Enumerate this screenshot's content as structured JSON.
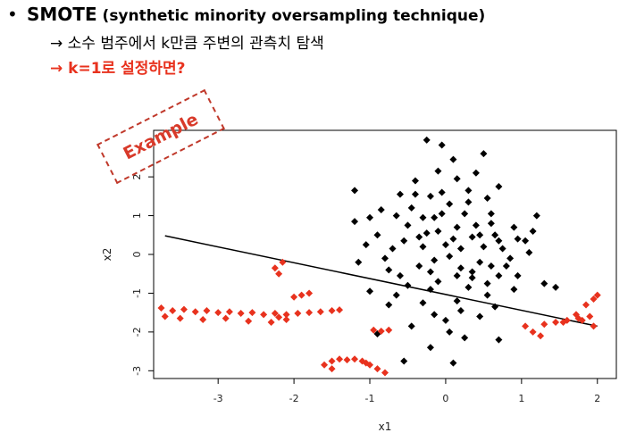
{
  "slide": {
    "bullet": "•",
    "title_main": "SMOTE",
    "title_rest": " (synthetic minority oversampling technique)",
    "sub1": "→ 소수 범주에서 k만큼 주변의 관측치 탐색",
    "sub2": "→ k=1로 설정하면?",
    "stamp": "Example"
  },
  "colors": {
    "accent": "#e8321e",
    "points": "#000000",
    "line": "#000000"
  },
  "chart_data": {
    "type": "scatter",
    "xlabel": "x1",
    "ylabel": "x2",
    "xlim": [
      -3.85,
      2.25
    ],
    "ylim": [
      -3.2,
      3.2
    ],
    "x_ticks": [
      -3,
      -2,
      -1,
      0,
      1,
      2
    ],
    "y_ticks": [
      -3,
      -2,
      -1,
      0,
      1,
      2
    ],
    "x_tick_labels": [
      "-3",
      "-2",
      "-1",
      "0",
      "1",
      "2"
    ],
    "y_tick_labels": [
      "-3",
      "-2",
      "-1",
      "0",
      "1",
      "2"
    ],
    "regression_line": {
      "x": [
        -3.7,
        2.0
      ],
      "y": [
        0.48,
        -1.85
      ]
    },
    "series": [
      {
        "values": [
          [
            -0.25,
            2.95
          ],
          [
            -0.05,
            2.82
          ],
          [
            0.1,
            2.45
          ],
          [
            0.5,
            2.6
          ],
          [
            -0.1,
            2.15
          ],
          [
            0.4,
            2.1
          ],
          [
            0.7,
            1.75
          ],
          [
            0.15,
            1.95
          ],
          [
            -0.4,
            1.9
          ],
          [
            -0.05,
            1.6
          ],
          [
            -0.6,
            1.55
          ],
          [
            -0.2,
            1.5
          ],
          [
            0.3,
            1.65
          ],
          [
            0.55,
            1.45
          ],
          [
            -1.2,
            1.65
          ],
          [
            -0.85,
            1.15
          ],
          [
            1.2,
            1.0
          ],
          [
            -1.2,
            0.85
          ],
          [
            0.9,
            0.7
          ],
          [
            0.65,
            0.5
          ],
          [
            0.35,
            0.45
          ],
          [
            -0.1,
            0.6
          ],
          [
            -0.5,
            0.75
          ],
          [
            -0.9,
            0.5
          ],
          [
            0.95,
            0.4
          ],
          [
            0.5,
            0.2
          ],
          [
            0.2,
            0.15
          ],
          [
            -0.3,
            0.2
          ],
          [
            -0.7,
            0.15
          ],
          [
            1.1,
            0.05
          ],
          [
            0.85,
            -0.1
          ],
          [
            0.45,
            -0.2
          ],
          [
            0.05,
            -0.05
          ],
          [
            -0.35,
            -0.3
          ],
          [
            -0.75,
            -0.4
          ],
          [
            -1.15,
            -0.2
          ],
          [
            0.7,
            -0.55
          ],
          [
            0.35,
            -0.6
          ],
          [
            -0.1,
            -0.7
          ],
          [
            -0.5,
            -0.8
          ],
          [
            -1.0,
            -0.95
          ],
          [
            0.9,
            -0.9
          ],
          [
            0.55,
            -1.05
          ],
          [
            0.15,
            -1.2
          ],
          [
            -0.3,
            -1.25
          ],
          [
            -0.75,
            -1.3
          ],
          [
            0.45,
            -1.6
          ],
          [
            0.0,
            -1.7
          ],
          [
            -0.45,
            -1.85
          ],
          [
            -0.9,
            -2.05
          ],
          [
            0.25,
            -2.15
          ],
          [
            -0.2,
            -2.4
          ],
          [
            0.7,
            -2.2
          ],
          [
            0.1,
            -2.8
          ],
          [
            -0.55,
            -2.75
          ],
          [
            1.3,
            -0.75
          ],
          [
            1.45,
            -0.85
          ],
          [
            -0.15,
            0.95
          ],
          [
            0.25,
            1.05
          ],
          [
            0.6,
            1.05
          ],
          [
            -0.45,
            1.2
          ],
          [
            0.05,
            1.3
          ],
          [
            -0.3,
            0.95
          ],
          [
            0.4,
            0.75
          ],
          [
            0.1,
            0.4
          ],
          [
            -0.2,
            -0.45
          ],
          [
            0.2,
            -0.35
          ],
          [
            0.6,
            -0.3
          ],
          [
            -0.55,
            0.35
          ],
          [
            0.75,
            0.15
          ],
          [
            -0.8,
            -0.1
          ],
          [
            0.3,
            -0.85
          ],
          [
            -0.2,
            -0.9
          ],
          [
            0.8,
            -0.3
          ],
          [
            -1.05,
            0.25
          ],
          [
            1.05,
            0.35
          ],
          [
            0.95,
            -0.55
          ],
          [
            -0.35,
            0.45
          ],
          [
            0.15,
            0.7
          ],
          [
            0.45,
            0.5
          ],
          [
            -0.65,
            1.0
          ],
          [
            0.6,
            0.8
          ],
          [
            -0.15,
            -0.15
          ],
          [
            0.35,
            -0.45
          ],
          [
            0.0,
            0.25
          ],
          [
            -0.25,
            0.55
          ],
          [
            0.55,
            -0.75
          ],
          [
            -0.6,
            -0.55
          ],
          [
            0.15,
            -0.55
          ],
          [
            -0.05,
            1.05
          ],
          [
            0.7,
            0.35
          ],
          [
            1.15,
            0.6
          ],
          [
            -1.0,
            0.95
          ],
          [
            0.3,
            1.35
          ],
          [
            -0.4,
            1.55
          ],
          [
            0.2,
            -1.45
          ],
          [
            -0.15,
            -1.55
          ],
          [
            0.65,
            -1.35
          ],
          [
            -0.65,
            -1.05
          ],
          [
            0.05,
            -2.0
          ]
        ]
      },
      {
        "values": [
          [
            -3.75,
            -1.38
          ],
          [
            -3.6,
            -1.45
          ],
          [
            -3.45,
            -1.42
          ],
          [
            -3.3,
            -1.48
          ],
          [
            -3.15,
            -1.45
          ],
          [
            -3.0,
            -1.5
          ],
          [
            -2.85,
            -1.48
          ],
          [
            -2.7,
            -1.52
          ],
          [
            -2.55,
            -1.5
          ],
          [
            -2.4,
            -1.55
          ],
          [
            -2.25,
            -1.52
          ],
          [
            -2.1,
            -1.55
          ],
          [
            -1.95,
            -1.52
          ],
          [
            -1.8,
            -1.5
          ],
          [
            -1.65,
            -1.48
          ],
          [
            -1.5,
            -1.45
          ],
          [
            -1.4,
            -1.43
          ],
          [
            -2.2,
            -0.5
          ],
          [
            -2.25,
            -0.35
          ],
          [
            -2.15,
            -0.2
          ],
          [
            -2.0,
            -1.1
          ],
          [
            -1.9,
            -1.05
          ],
          [
            -1.8,
            -1.0
          ],
          [
            -0.95,
            -1.95
          ],
          [
            -0.85,
            -1.98
          ],
          [
            -0.75,
            -1.95
          ],
          [
            -1.6,
            -2.85
          ],
          [
            -1.5,
            -2.75
          ],
          [
            -1.4,
            -2.7
          ],
          [
            -1.3,
            -2.72
          ],
          [
            -1.2,
            -2.7
          ],
          [
            -1.1,
            -2.75
          ],
          [
            -1.0,
            -2.85
          ],
          [
            -0.9,
            -2.95
          ],
          [
            -0.8,
            -3.05
          ],
          [
            -1.5,
            -2.95
          ],
          [
            -1.05,
            -2.8
          ],
          [
            1.05,
            -1.85
          ],
          [
            1.15,
            -2.0
          ],
          [
            1.25,
            -2.1
          ],
          [
            1.3,
            -1.8
          ],
          [
            1.45,
            -1.75
          ],
          [
            1.6,
            -1.7
          ],
          [
            1.75,
            -1.65
          ],
          [
            1.9,
            -1.6
          ],
          [
            1.55,
            -1.75
          ],
          [
            1.72,
            -1.55
          ],
          [
            1.85,
            -1.3
          ],
          [
            1.95,
            -1.15
          ],
          [
            2.0,
            -1.05
          ],
          [
            1.8,
            -1.7
          ],
          [
            1.95,
            -1.85
          ],
          [
            -3.7,
            -1.6
          ],
          [
            -3.5,
            -1.65
          ],
          [
            -3.2,
            -1.68
          ],
          [
            -2.9,
            -1.65
          ],
          [
            -2.6,
            -1.72
          ],
          [
            -2.3,
            -1.75
          ],
          [
            -2.2,
            -1.62
          ],
          [
            -2.1,
            -1.68
          ]
        ]
      }
    ]
  }
}
